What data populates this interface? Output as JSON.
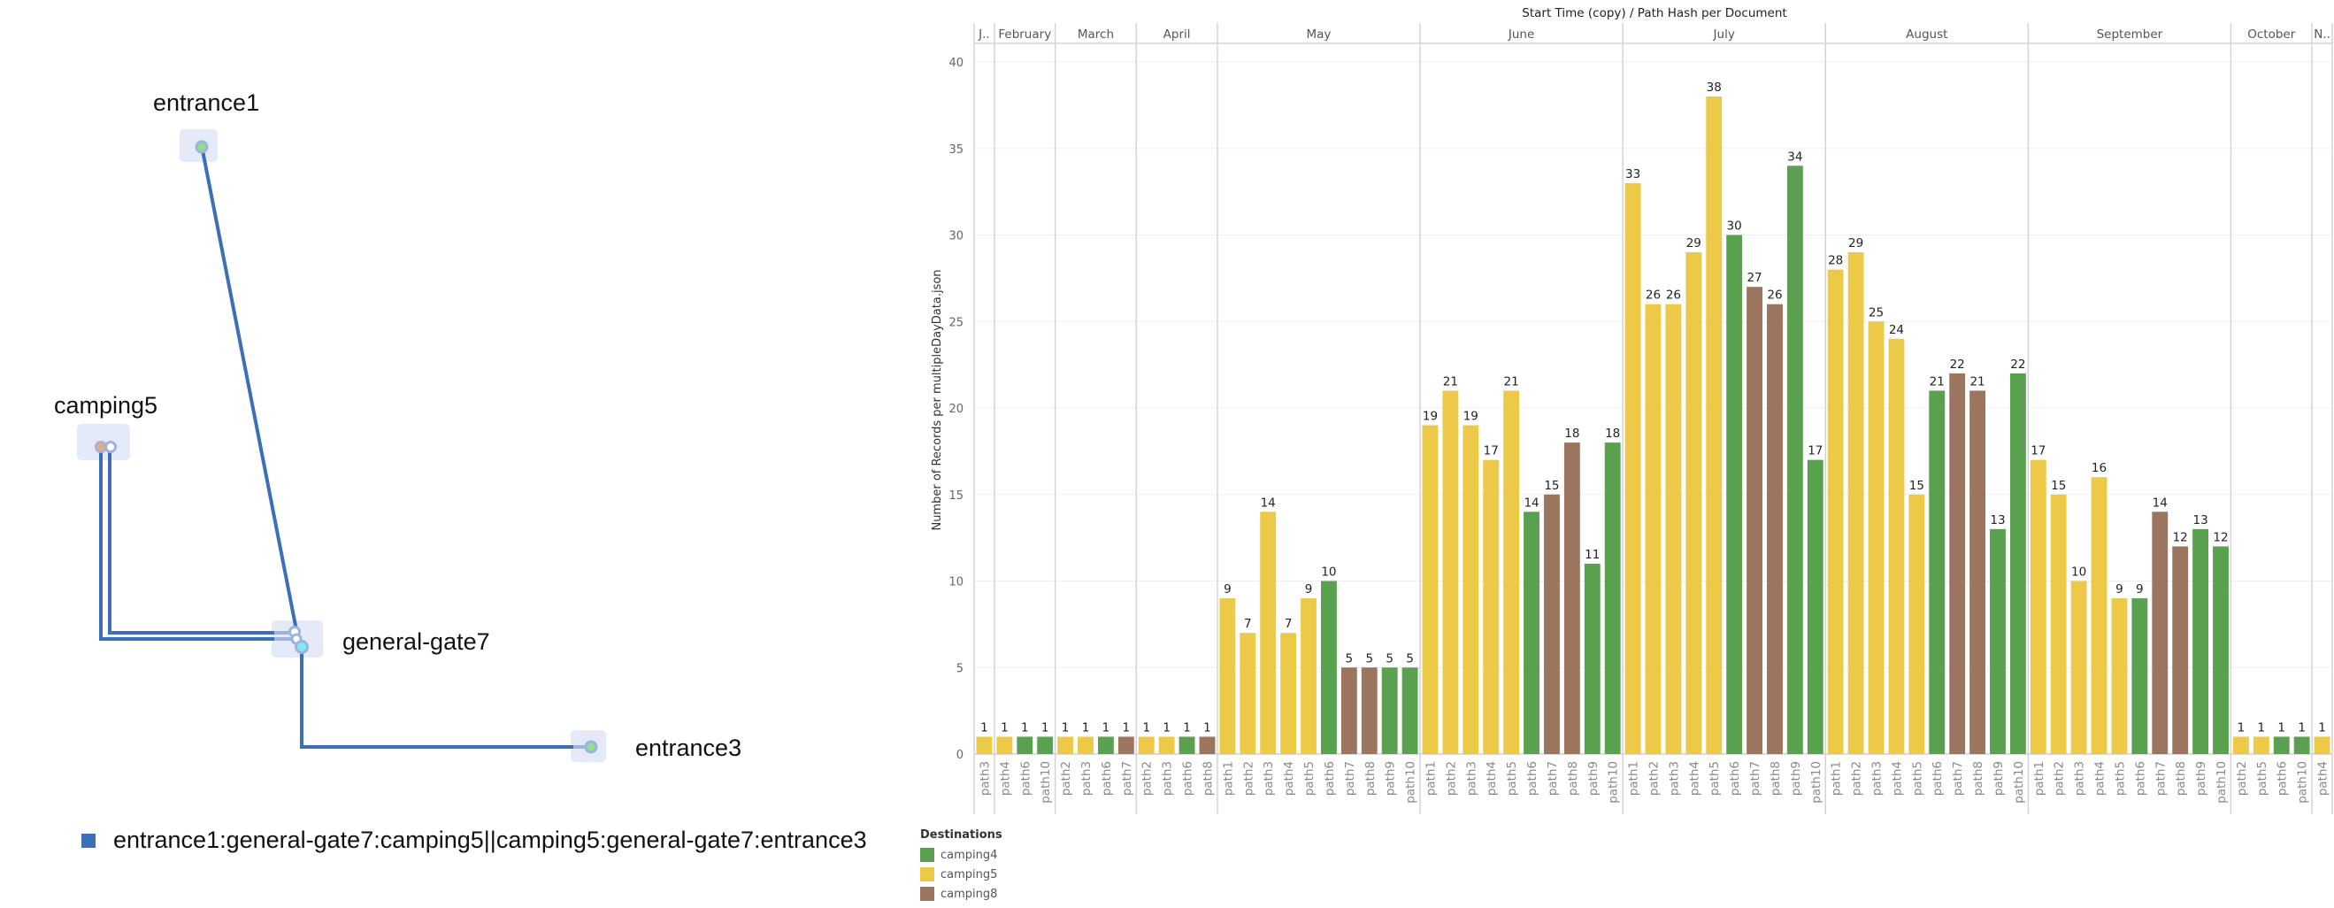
{
  "network": {
    "nodes": [
      {
        "id": "entrance1",
        "label": "entrance1",
        "dot_color": "#8ee08a"
      },
      {
        "id": "camping5",
        "label": "camping5",
        "dot_color": "#e8a888"
      },
      {
        "id": "general-gate7",
        "label": "general-gate7",
        "dot_color": "#7eeaf0"
      },
      {
        "id": "entrance3",
        "label": "entrance3",
        "dot_color": "#8ee08a"
      }
    ],
    "edges": [
      [
        "entrance1",
        "general-gate7"
      ],
      [
        "general-gate7",
        "camping5"
      ],
      [
        "camping5",
        "general-gate7"
      ],
      [
        "general-gate7",
        "entrance3"
      ]
    ],
    "line_color": "#3b6fb6",
    "legend_label": "entrance1:general-gate7:camping5||camping5:general-gate7:entrance3"
  },
  "legend": {
    "title": "Destinations",
    "items": [
      {
        "label": "camping4",
        "color": "#59a14f"
      },
      {
        "label": "camping5",
        "color": "#edc948"
      },
      {
        "label": "camping8",
        "color": "#9c755f"
      }
    ]
  },
  "chart_data": {
    "type": "bar",
    "title": "Start Time (copy) / Path Hash per Document",
    "xlabel": "",
    "ylabel": "Number of Records per multipleDayData.json",
    "ylim": [
      0,
      40
    ],
    "yticks": [
      0,
      5,
      10,
      15,
      20,
      25,
      30,
      35,
      40
    ],
    "grid": true,
    "legend_position": "bottom-left",
    "series_colors": {
      "camping4": "#59a14f",
      "camping5": "#edc948",
      "camping8": "#9c755f"
    },
    "groups": [
      {
        "month": "January",
        "header": "J..",
        "bars": [
          {
            "path": "path3",
            "value": 1,
            "dest": "camping5"
          }
        ]
      },
      {
        "month": "February",
        "header": "February",
        "bars": [
          {
            "path": "path4",
            "value": 1,
            "dest": "camping5"
          },
          {
            "path": "path6",
            "value": 1,
            "dest": "camping4"
          },
          {
            "path": "path10",
            "value": 1,
            "dest": "camping4"
          }
        ]
      },
      {
        "month": "March",
        "header": "March",
        "bars": [
          {
            "path": "path2",
            "value": 1,
            "dest": "camping5"
          },
          {
            "path": "path3",
            "value": 1,
            "dest": "camping5"
          },
          {
            "path": "path6",
            "value": 1,
            "dest": "camping4"
          },
          {
            "path": "path7",
            "value": 1,
            "dest": "camping8"
          }
        ]
      },
      {
        "month": "April",
        "header": "April",
        "bars": [
          {
            "path": "path2",
            "value": 1,
            "dest": "camping5"
          },
          {
            "path": "path3",
            "value": 1,
            "dest": "camping5"
          },
          {
            "path": "path6",
            "value": 1,
            "dest": "camping4"
          },
          {
            "path": "path8",
            "value": 1,
            "dest": "camping8"
          }
        ]
      },
      {
        "month": "May",
        "header": "May",
        "bars": [
          {
            "path": "path1",
            "value": 9,
            "dest": "camping5"
          },
          {
            "path": "path2",
            "value": 7,
            "dest": "camping5"
          },
          {
            "path": "path3",
            "value": 14,
            "dest": "camping5"
          },
          {
            "path": "path4",
            "value": 7,
            "dest": "camping5"
          },
          {
            "path": "path5",
            "value": 9,
            "dest": "camping5"
          },
          {
            "path": "path6",
            "value": 10,
            "dest": "camping4"
          },
          {
            "path": "path7",
            "value": 5,
            "dest": "camping8"
          },
          {
            "path": "path8",
            "value": 5,
            "dest": "camping8"
          },
          {
            "path": "path9",
            "value": 5,
            "dest": "camping4"
          },
          {
            "path": "path10",
            "value": 5,
            "dest": "camping4"
          }
        ]
      },
      {
        "month": "June",
        "header": "June",
        "bars": [
          {
            "path": "path1",
            "value": 19,
            "dest": "camping5"
          },
          {
            "path": "path2",
            "value": 21,
            "dest": "camping5"
          },
          {
            "path": "path3",
            "value": 19,
            "dest": "camping5"
          },
          {
            "path": "path4",
            "value": 17,
            "dest": "camping5"
          },
          {
            "path": "path5",
            "value": 21,
            "dest": "camping5"
          },
          {
            "path": "path6",
            "value": 14,
            "dest": "camping4"
          },
          {
            "path": "path7",
            "value": 15,
            "dest": "camping8"
          },
          {
            "path": "path8",
            "value": 18,
            "dest": "camping8"
          },
          {
            "path": "path9",
            "value": 11,
            "dest": "camping4"
          },
          {
            "path": "path10",
            "value": 18,
            "dest": "camping4"
          }
        ]
      },
      {
        "month": "July",
        "header": "July",
        "bars": [
          {
            "path": "path1",
            "value": 33,
            "dest": "camping5"
          },
          {
            "path": "path2",
            "value": 26,
            "dest": "camping5"
          },
          {
            "path": "path3",
            "value": 26,
            "dest": "camping5"
          },
          {
            "path": "path4",
            "value": 29,
            "dest": "camping5"
          },
          {
            "path": "path5",
            "value": 38,
            "dest": "camping5"
          },
          {
            "path": "path6",
            "value": 30,
            "dest": "camping4"
          },
          {
            "path": "path7",
            "value": 27,
            "dest": "camping8"
          },
          {
            "path": "path8",
            "value": 26,
            "dest": "camping8"
          },
          {
            "path": "path9",
            "value": 34,
            "dest": "camping4"
          },
          {
            "path": "path10",
            "value": 17,
            "dest": "camping4"
          }
        ]
      },
      {
        "month": "August",
        "header": "August",
        "bars": [
          {
            "path": "path1",
            "value": 28,
            "dest": "camping5"
          },
          {
            "path": "path2",
            "value": 29,
            "dest": "camping5"
          },
          {
            "path": "path3",
            "value": 25,
            "dest": "camping5"
          },
          {
            "path": "path4",
            "value": 24,
            "dest": "camping5"
          },
          {
            "path": "path5",
            "value": 15,
            "dest": "camping5"
          },
          {
            "path": "path6",
            "value": 21,
            "dest": "camping4"
          },
          {
            "path": "path7",
            "value": 22,
            "dest": "camping8"
          },
          {
            "path": "path8",
            "value": 21,
            "dest": "camping8"
          },
          {
            "path": "path9",
            "value": 13,
            "dest": "camping4"
          },
          {
            "path": "path10",
            "value": 22,
            "dest": "camping4"
          }
        ]
      },
      {
        "month": "September",
        "header": "September",
        "bars": [
          {
            "path": "path1",
            "value": 17,
            "dest": "camping5"
          },
          {
            "path": "path2",
            "value": 15,
            "dest": "camping5"
          },
          {
            "path": "path3",
            "value": 10,
            "dest": "camping5"
          },
          {
            "path": "path4",
            "value": 16,
            "dest": "camping5"
          },
          {
            "path": "path5",
            "value": 9,
            "dest": "camping5"
          },
          {
            "path": "path6",
            "value": 9,
            "dest": "camping4"
          },
          {
            "path": "path7",
            "value": 14,
            "dest": "camping8"
          },
          {
            "path": "path8",
            "value": 12,
            "dest": "camping8"
          },
          {
            "path": "path9",
            "value": 13,
            "dest": "camping4"
          },
          {
            "path": "path10",
            "value": 12,
            "dest": "camping4"
          }
        ]
      },
      {
        "month": "October",
        "header": "October",
        "bars": [
          {
            "path": "path2",
            "value": 1,
            "dest": "camping5"
          },
          {
            "path": "path5",
            "value": 1,
            "dest": "camping5"
          },
          {
            "path": "path6",
            "value": 1,
            "dest": "camping4"
          },
          {
            "path": "path10",
            "value": 1,
            "dest": "camping4"
          }
        ]
      },
      {
        "month": "November",
        "header": "N..",
        "bars": [
          {
            "path": "path4",
            "value": 1,
            "dest": "camping5"
          }
        ]
      }
    ]
  }
}
